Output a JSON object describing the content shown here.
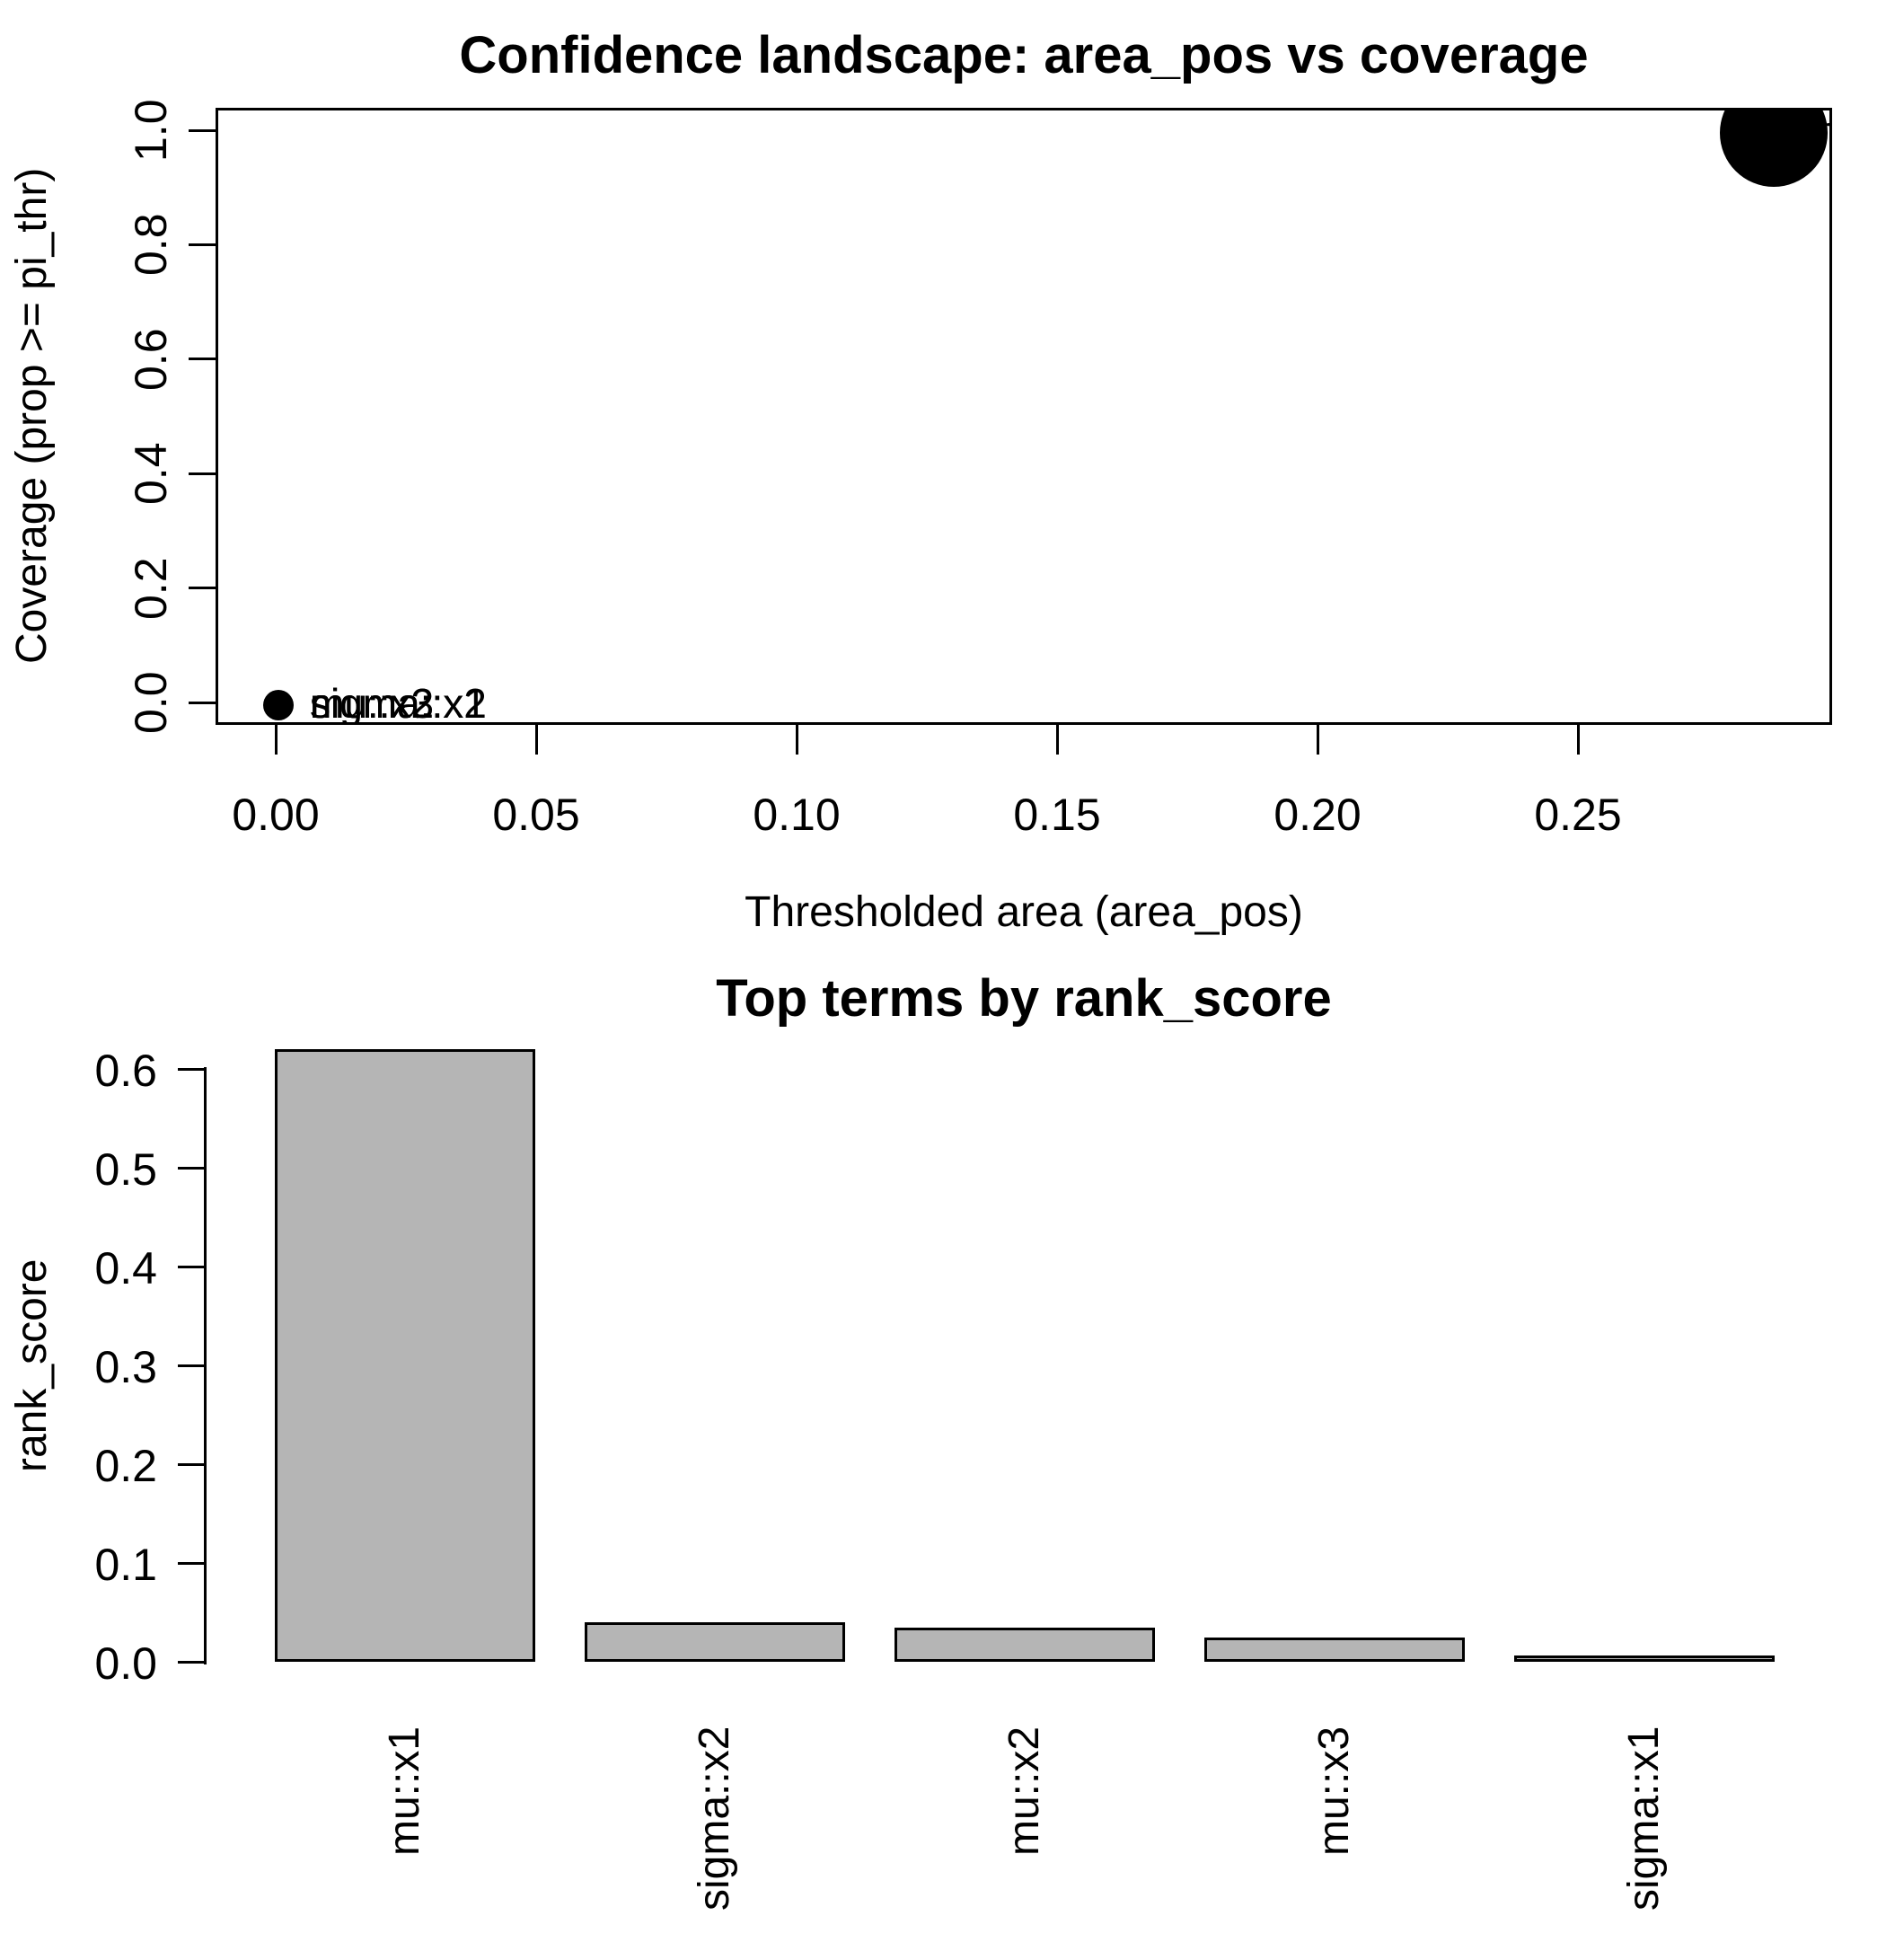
{
  "figure": {
    "background": "#ffffff",
    "foreground": "#000000"
  },
  "chart_data": [
    {
      "type": "scatter",
      "title": "Confidence landscape: area_pos vs coverage",
      "xlabel": "Thresholded area (area_pos)",
      "ylabel": "Coverage (prop >= pi_thr)",
      "xlim": [
        -0.011,
        0.299
      ],
      "ylim": [
        -0.04,
        1.04
      ],
      "x_ticks": [
        "0.00",
        "0.05",
        "0.10",
        "0.15",
        "0.20",
        "0.25"
      ],
      "y_ticks": [
        "0.0",
        "0.2",
        "0.4",
        "0.6",
        "0.8",
        "1.0"
      ],
      "grid": false,
      "legend": false,
      "point_color": "#000000",
      "points": [
        {
          "x": 0.287,
          "y": 1.0,
          "r": 60,
          "labels": [
            "mu::x1"
          ]
        },
        {
          "x": 0.0,
          "y": 0.0,
          "r": 17,
          "labels": [
            "sigma::x2",
            "mu::x2",
            "mu::x3",
            "sigma::x1"
          ]
        }
      ]
    },
    {
      "type": "bar",
      "title": "Top terms by rank_score",
      "xlabel": "",
      "ylabel": "rank_score",
      "categories": [
        "mu::x1",
        "sigma::x2",
        "mu::x2",
        "mu::x3",
        "sigma::x1"
      ],
      "categories_visible": [
        "mu::x1",
        "gma::x2",
        "mu::x2",
        "mu::x3",
        "gma::x1"
      ],
      "values": [
        0.62,
        0.04,
        0.035,
        0.025,
        0.006
      ],
      "y_ticks": [
        "0.0",
        "0.1",
        "0.2",
        "0.3",
        "0.4",
        "0.5",
        "0.6"
      ],
      "ylim": [
        0,
        0.62
      ],
      "grid": false,
      "legend": false,
      "bar_fill": "#b5b5b5",
      "bar_border": "#000000"
    }
  ]
}
